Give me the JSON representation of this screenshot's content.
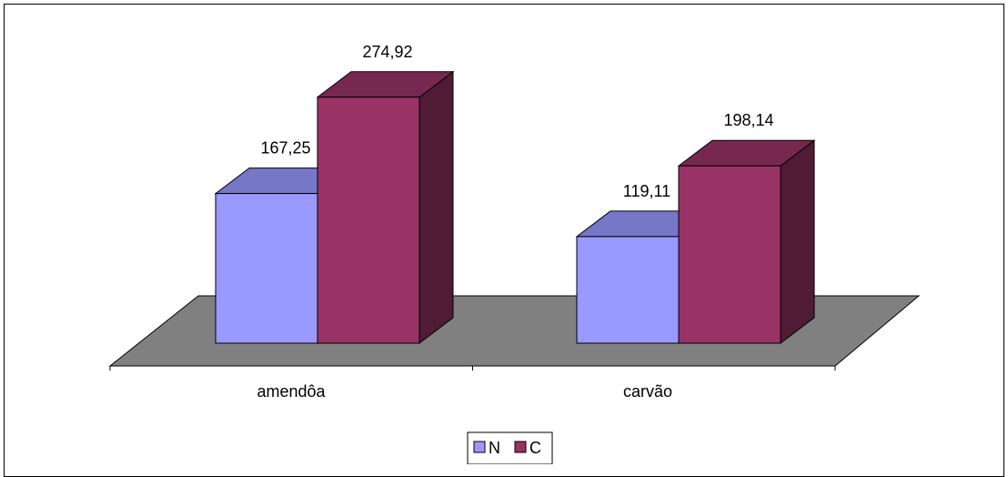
{
  "chart_data": {
    "type": "bar",
    "style": "3d-clustered",
    "categories": [
      "amendôa",
      "carvão"
    ],
    "series": [
      {
        "name": "N",
        "values": [
          167.25,
          119.11
        ],
        "labels": [
          "167,25",
          "119,11"
        ],
        "color": "#9999FF"
      },
      {
        "name": "C",
        "values": [
          274.92,
          198.14
        ],
        "labels": [
          "274,92",
          "198,14"
        ],
        "color": "#993366"
      }
    ],
    "floor_color": "#808080",
    "legend_position": "bottom",
    "grid": false,
    "ylim": [
      0,
      320
    ]
  }
}
